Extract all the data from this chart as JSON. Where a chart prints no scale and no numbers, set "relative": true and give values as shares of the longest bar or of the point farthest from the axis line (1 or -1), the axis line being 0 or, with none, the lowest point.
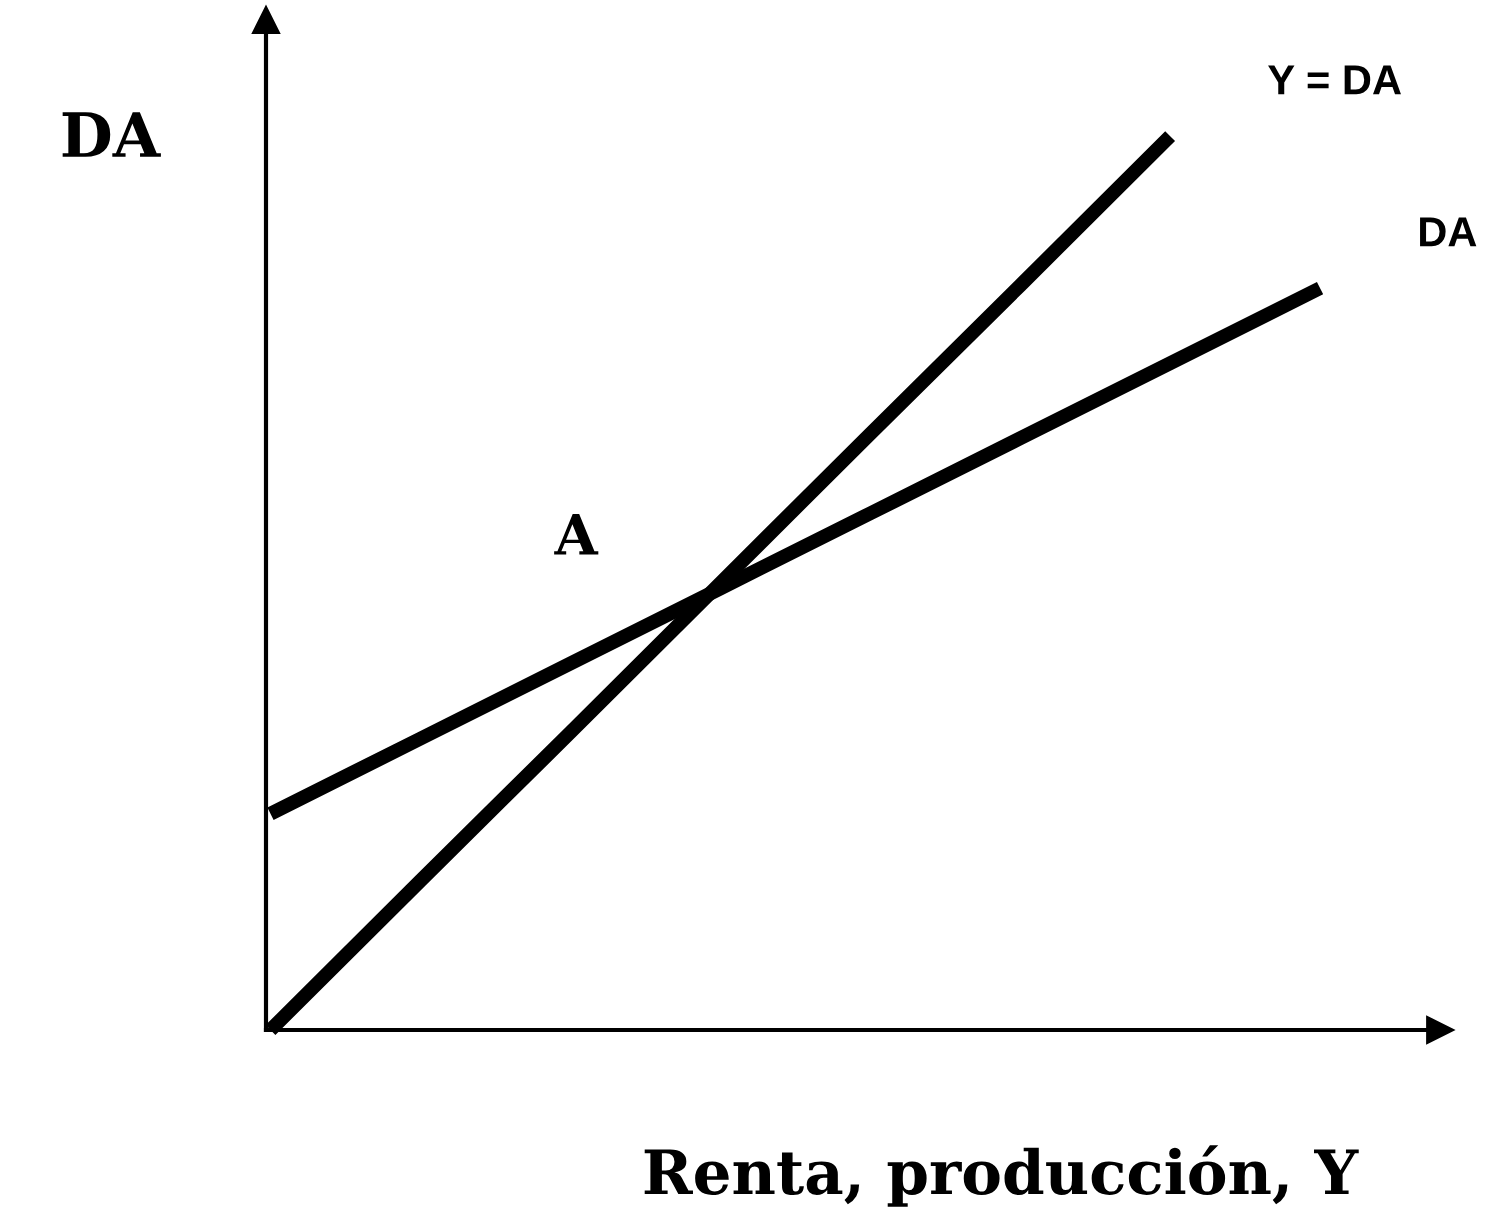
{
  "chart_data": {
    "type": "line",
    "relative": true,
    "xlabel": "Renta, producción, Y",
    "ylabel": "DA",
    "categories": [
      null,
      null,
      null,
      null,
      null,
      null,
      null,
      null
    ],
    "series": [
      {
        "name": "Y = DA",
        "color": "#000000",
        "values": [
          0,
          0.167,
          0.333,
          0.5,
          0.667,
          0.833,
          1,
          null
        ]
      },
      {
        "name": "DA",
        "color": "#000000",
        "values": [
          0.242,
          0.326,
          0.41,
          0.494,
          0.578,
          0.662,
          0.746,
          0.83
        ]
      }
    ],
    "annotations": [
      "A"
    ],
    "grid": false,
    "legend": false,
    "marker": "none",
    "line_style": "solid"
  }
}
